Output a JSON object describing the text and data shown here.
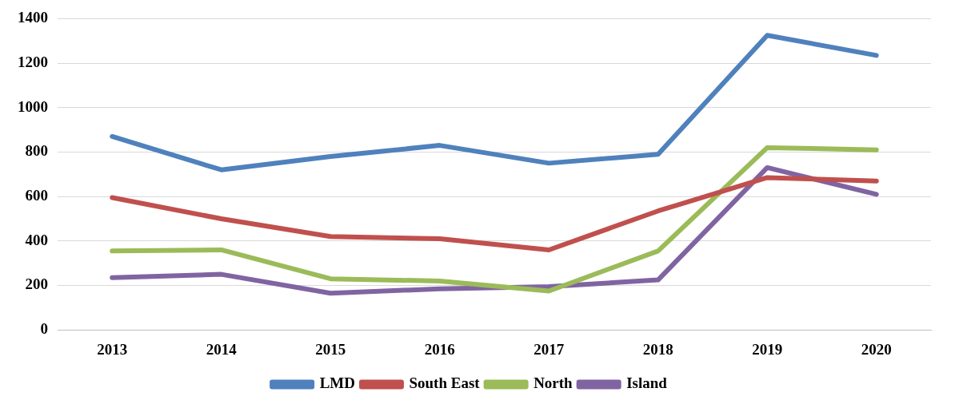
{
  "chart_data": {
    "type": "line",
    "categories": [
      "2013",
      "2014",
      "2015",
      "2016",
      "2017",
      "2018",
      "2019",
      "2020"
    ],
    "series": [
      {
        "name": "LMD",
        "color": "#4f81bd",
        "values": [
          870,
          720,
          780,
          830,
          750,
          790,
          1325,
          1235
        ]
      },
      {
        "name": "South East",
        "color": "#c0504d",
        "values": [
          595,
          500,
          420,
          410,
          360,
          535,
          685,
          670
        ]
      },
      {
        "name": "North",
        "color": "#9bbb59",
        "values": [
          355,
          360,
          230,
          220,
          175,
          355,
          820,
          810
        ]
      },
      {
        "name": "Island",
        "color": "#8064a2",
        "values": [
          235,
          250,
          165,
          185,
          195,
          225,
          730,
          610
        ]
      }
    ],
    "ylim": [
      0,
      1400
    ],
    "yticks": [
      0,
      200,
      400,
      600,
      800,
      1000,
      1200,
      1400
    ],
    "grid": "y",
    "legend": "bottom",
    "marker": "none",
    "line_style": "solid"
  }
}
